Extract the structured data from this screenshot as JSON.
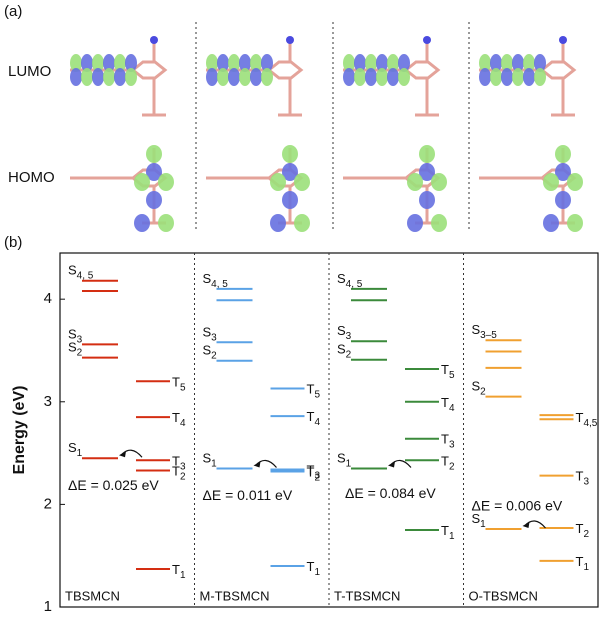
{
  "panel_a": {
    "label": "(a)",
    "rows": [
      "LUMO",
      "HOMO"
    ]
  },
  "chart_data": {
    "type": "energy-levels",
    "panel_label": "(b)",
    "y_label": "Energy (eV)",
    "ylim": [
      1,
      4.45
    ],
    "yticks": [
      1,
      2,
      3,
      4
    ],
    "panels": [
      {
        "name": "TBSMCN",
        "color": "#d42e12",
        "annotation": "ΔE = 0.025 eV",
        "singlets": [
          {
            "label": {
              "base": "S",
              "sub": "4, 5"
            },
            "values": [
              4.18,
              4.08
            ]
          },
          {
            "label": {
              "base": "S",
              "sub": "3"
            },
            "values": [
              3.56
            ]
          },
          {
            "label": {
              "base": "S",
              "sub": "2"
            },
            "values": [
              3.43
            ]
          },
          {
            "label": {
              "base": "S",
              "sub": "1"
            },
            "values": [
              2.45
            ]
          }
        ],
        "triplets": [
          {
            "label": {
              "base": "T",
              "sub": "5"
            },
            "values": [
              3.2
            ]
          },
          {
            "label": {
              "base": "T",
              "sub": "4"
            },
            "values": [
              2.85
            ]
          },
          {
            "label": {
              "base": "T",
              "sub": "3"
            },
            "values": [
              2.43
            ]
          },
          {
            "label": {
              "base": "T",
              "sub": "2"
            },
            "values": [
              2.33
            ]
          },
          {
            "label": {
              "base": "T",
              "sub": "1"
            },
            "values": [
              1.37
            ]
          }
        ]
      },
      {
        "name": "M-TBSMCN",
        "color": "#5aa2e6",
        "annotation": "ΔE = 0.011 eV",
        "singlets": [
          {
            "label": {
              "base": "S",
              "sub": "4, 5"
            },
            "values": [
              4.1,
              3.99
            ]
          },
          {
            "label": {
              "base": "S",
              "sub": "3"
            },
            "values": [
              3.58
            ]
          },
          {
            "label": {
              "base": "S",
              "sub": "2"
            },
            "values": [
              3.4
            ]
          },
          {
            "label": {
              "base": "S",
              "sub": "1"
            },
            "values": [
              2.35
            ]
          }
        ],
        "triplets": [
          {
            "label": {
              "base": "T",
              "sub": "5"
            },
            "values": [
              3.13
            ]
          },
          {
            "label": {
              "base": "T",
              "sub": "4"
            },
            "values": [
              2.86
            ]
          },
          {
            "label": {
              "base": "T",
              "sub": "3"
            },
            "values": [
              2.34
            ]
          },
          {
            "label": {
              "base": "T",
              "sub": "2"
            },
            "values": [
              2.32
            ]
          },
          {
            "label": {
              "base": "T",
              "sub": "1"
            },
            "values": [
              1.4
            ]
          }
        ]
      },
      {
        "name": "T-TBSMCN",
        "color": "#3b8a3b",
        "annotation": "ΔE = 0.084 eV",
        "singlets": [
          {
            "label": {
              "base": "S",
              "sub": "4, 5"
            },
            "values": [
              4.1,
              3.99
            ]
          },
          {
            "label": {
              "base": "S",
              "sub": "3"
            },
            "values": [
              3.59
            ]
          },
          {
            "label": {
              "base": "S",
              "sub": "2"
            },
            "values": [
              3.41
            ]
          },
          {
            "label": {
              "base": "S",
              "sub": "1"
            },
            "values": [
              2.35
            ]
          }
        ],
        "triplets": [
          {
            "label": {
              "base": "T",
              "sub": "5"
            },
            "values": [
              3.32
            ]
          },
          {
            "label": {
              "base": "T",
              "sub": "4"
            },
            "values": [
              3.0
            ]
          },
          {
            "label": {
              "base": "T",
              "sub": "3"
            },
            "values": [
              2.64
            ]
          },
          {
            "label": {
              "base": "T",
              "sub": "2"
            },
            "values": [
              2.43
            ]
          },
          {
            "label": {
              "base": "T",
              "sub": "1"
            },
            "values": [
              1.75
            ]
          }
        ]
      },
      {
        "name": "O-TBSMCN",
        "color": "#f0a030",
        "annotation": "ΔE = 0.006 eV",
        "singlets": [
          {
            "label": {
              "base": "S",
              "sub": "3–5"
            },
            "values": [
              3.6,
              3.49,
              3.33
            ]
          },
          {
            "label": {
              "base": "S",
              "sub": "2"
            },
            "values": [
              3.05
            ]
          },
          {
            "label": {
              "base": "S",
              "sub": "1"
            },
            "values": [
              1.76
            ]
          }
        ],
        "triplets": [
          {
            "label": {
              "base": "T",
              "sub": "4,5"
            },
            "values": [
              2.87,
              2.83
            ]
          },
          {
            "label": {
              "base": "T",
              "sub": "3"
            },
            "values": [
              2.28
            ]
          },
          {
            "label": {
              "base": "T",
              "sub": "2"
            },
            "values": [
              1.77
            ]
          },
          {
            "label": {
              "base": "T",
              "sub": "1"
            },
            "values": [
              1.45
            ]
          }
        ]
      }
    ]
  }
}
